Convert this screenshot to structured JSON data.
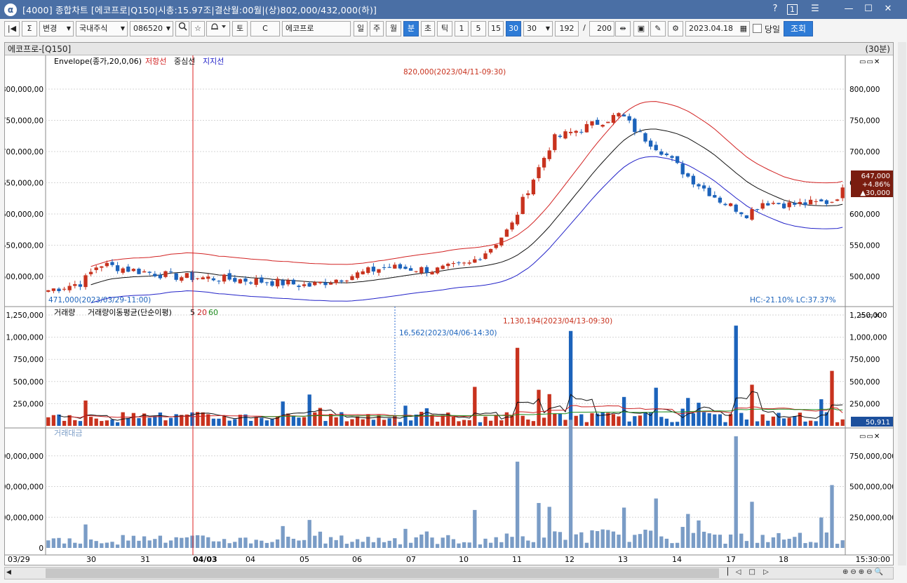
{
  "window": {
    "title": "[4000] 종합차트 [에코프로|Q150|시총:15.97조|결산월:00월|(상)802,000/432,000(하)]",
    "logo": "α",
    "help": "?",
    "one": "1",
    "menu": "☰",
    "min": "—",
    "max": "☐",
    "close": "✕"
  },
  "toolbar": {
    "first": "|◀",
    "sigma": "Σ",
    "change": "변경",
    "market": "국내주식",
    "code": "086520",
    "search_icon": "search-icon",
    "star": "☆",
    "bell": "bell-icon",
    "to": "토",
    "c": "C",
    "name": "에코프로",
    "periods": [
      "일",
      "주",
      "월",
      "분",
      "초",
      "틱"
    ],
    "active_period": "분",
    "intervals": [
      "1",
      "5",
      "15",
      "30"
    ],
    "active_interval": "30",
    "interval_select": "30",
    "count": "192",
    "slash": "/",
    "total": "200",
    "date": "2023.04.18",
    "same_day": "당일",
    "query": "조회"
  },
  "chart": {
    "header_title": "에코프로-[Q150]",
    "header_period": "(30분)",
    "price": {
      "legend_prefix": "Envelope(종가,20,0,06)",
      "legend_res": "저항선",
      "legend_mid": "중심선",
      "legend_sup": "지지선",
      "ticks": [
        "800,000",
        "750,000",
        "700,000",
        "650,000",
        "600,000",
        "550,000",
        "500,000"
      ],
      "ticks_left": [
        "800,000,00",
        "750,000,00",
        "700,000,00",
        "650,000,00",
        "600,000,00",
        "550,000,00",
        "500,000,00"
      ],
      "high_label": "820,000(2023/04/11-09:30)",
      "low_label": "471,000(2023/03/29-11:00)",
      "current": [
        "647,000",
        "+4.86%",
        "▲30,000"
      ],
      "hc_lc": "HC:-21.10%  LC:37.37%"
    },
    "volume": {
      "legend": "거래량",
      "legend2": "거래량이동평균(단순이평)",
      "ma": [
        "5",
        "20",
        "60"
      ],
      "ticks": [
        "1,250,000",
        "1,000,000",
        "750,000",
        "500,000",
        "250,000"
      ],
      "high_label": "1,130,194(2023/04/13-09:30)",
      "low_label": "16,562(2023/04/06-14:30)",
      "current": "50,911"
    },
    "amount": {
      "legend": "거래대금",
      "ticks": [
        "750,000,000",
        "500,000,000",
        "250,000,000"
      ],
      "ticks_left": [
        "00,000,000",
        "00,000,000",
        "00,000,000",
        "0"
      ]
    },
    "xlabels": [
      "03/29",
      "30",
      "31",
      "04/03",
      "04",
      "05",
      "06",
      "07",
      "10",
      "11",
      "12",
      "13",
      "14",
      "17",
      "18"
    ],
    "time": "15:30:00"
  },
  "colors": {
    "up": "#c8321e",
    "down": "#1c63bb",
    "res": "#d22222",
    "mid": "#111111",
    "sup": "#2222c8",
    "ma5": "#111111",
    "ma20": "#cc2222",
    "ma60": "#1e8c1e",
    "amount": "#7a9cc6"
  }
}
